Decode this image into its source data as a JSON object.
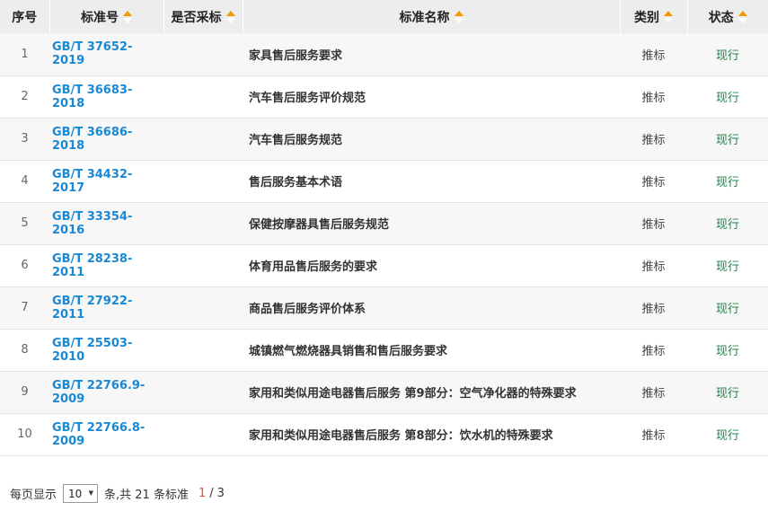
{
  "table": {
    "columns": [
      {
        "label": "序号",
        "sortable": false
      },
      {
        "label": "标准号",
        "sortable": true
      },
      {
        "label": "是否采标",
        "sortable": true
      },
      {
        "label": "标准名称",
        "sortable": true
      },
      {
        "label": "类别",
        "sortable": true
      },
      {
        "label": "状态",
        "sortable": true
      }
    ],
    "rows": [
      {
        "index": "1",
        "std_no": "GB/T 37652-2019",
        "adopted": "",
        "name": "家具售后服务要求",
        "category": "推标",
        "status": "现行"
      },
      {
        "index": "2",
        "std_no": "GB/T 36683-2018",
        "adopted": "",
        "name": "汽车售后服务评价规范",
        "category": "推标",
        "status": "现行"
      },
      {
        "index": "3",
        "std_no": "GB/T 36686-2018",
        "adopted": "",
        "name": "汽车售后服务规范",
        "category": "推标",
        "status": "现行"
      },
      {
        "index": "4",
        "std_no": "GB/T 34432-2017",
        "adopted": "",
        "name": "售后服务基本术语",
        "category": "推标",
        "status": "现行"
      },
      {
        "index": "5",
        "std_no": "GB/T 33354-2016",
        "adopted": "",
        "name": "保健按摩器具售后服务规范",
        "category": "推标",
        "status": "现行"
      },
      {
        "index": "6",
        "std_no": "GB/T 28238-2011",
        "adopted": "",
        "name": "体育用品售后服务的要求",
        "category": "推标",
        "status": "现行"
      },
      {
        "index": "7",
        "std_no": "GB/T 27922-2011",
        "adopted": "",
        "name": "商品售后服务评价体系",
        "category": "推标",
        "status": "现行"
      },
      {
        "index": "8",
        "std_no": "GB/T 25503-2010",
        "adopted": "",
        "name": "城镇燃气燃烧器具销售和售后服务要求",
        "category": "推标",
        "status": "现行"
      },
      {
        "index": "9",
        "std_no": "GB/T 22766.9-2009",
        "adopted": "",
        "name": "家用和类似用途电器售后服务 第9部分：空气净化器的特殊要求",
        "category": "推标",
        "status": "现行"
      },
      {
        "index": "10",
        "std_no": "GB/T 22766.8-2009",
        "adopted": "",
        "name": "家用和类似用途电器售后服务 第8部分：饮水机的特殊要求",
        "category": "推标",
        "status": "现行"
      }
    ]
  },
  "pagination": {
    "per_page_label": "每页显示",
    "per_page_value": "10",
    "suffix": "条,共 21 条标准",
    "current_page": "1",
    "separator": "/",
    "total_pages": "3"
  },
  "colors": {
    "link_blue": "#1a88d2",
    "status_green": "#1e8449",
    "sort_arrow_orange": "#f39800",
    "current_page_red": "#f44336",
    "header_bg": "#ededed",
    "stripe_row_bg": "#f7f7f7"
  }
}
